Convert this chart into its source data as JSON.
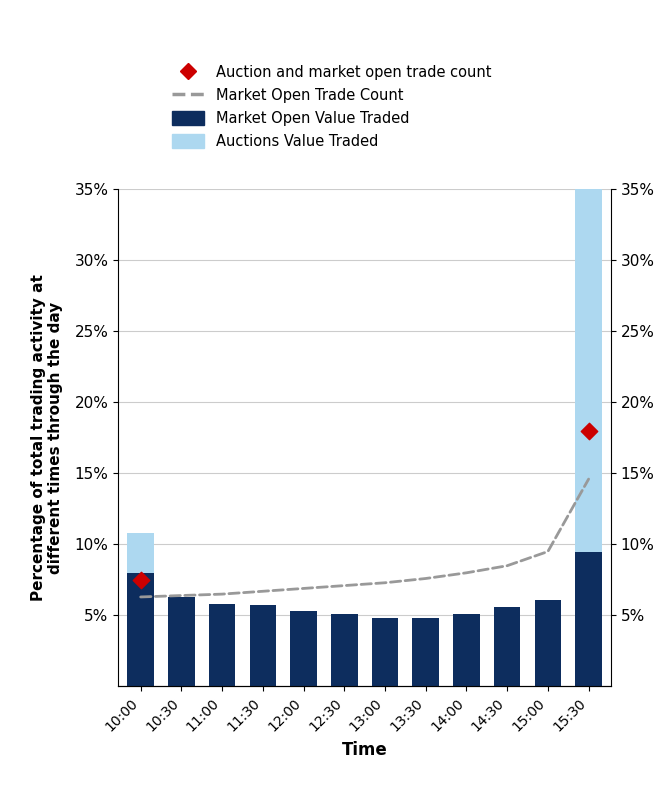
{
  "time_labels": [
    "10:00",
    "10:30",
    "11:00",
    "11:30",
    "12:00",
    "12:30",
    "13:00",
    "13:30",
    "14:00",
    "14:30",
    "15:00",
    "15:30"
  ],
  "market_open_value": [
    8.0,
    6.3,
    5.8,
    5.7,
    5.3,
    5.1,
    4.8,
    4.8,
    5.1,
    5.6,
    6.1,
    9.5
  ],
  "auctions_value": [
    2.8,
    0.0,
    0.0,
    0.0,
    0.0,
    0.0,
    0.0,
    0.0,
    0.0,
    0.0,
    0.0,
    25.5
  ],
  "market_open_trade_count": [
    6.3,
    6.4,
    6.5,
    6.7,
    6.9,
    7.1,
    7.3,
    7.6,
    8.0,
    8.5,
    9.5,
    14.6
  ],
  "auction_market_open_trade_count": [
    7.5,
    null,
    null,
    null,
    null,
    null,
    null,
    null,
    null,
    null,
    null,
    18.0
  ],
  "ylim": [
    0,
    35
  ],
  "yticks": [
    5,
    10,
    15,
    20,
    25,
    30,
    35
  ],
  "ylabel": "Percentage of total trading activity at\ndifferent times through the day",
  "xlabel": "Time",
  "bar_color_dark": "#0d2d5e",
  "bar_color_light": "#add8f0",
  "line_color": "#999999",
  "marker_color": "#cc0000",
  "background_color": "#ffffff",
  "grid_color": "#cccccc",
  "legend_labels": [
    "Auction and market open trade count",
    "Market Open Trade Count",
    "Market Open Value Traded",
    "Auctions Value Traded"
  ]
}
